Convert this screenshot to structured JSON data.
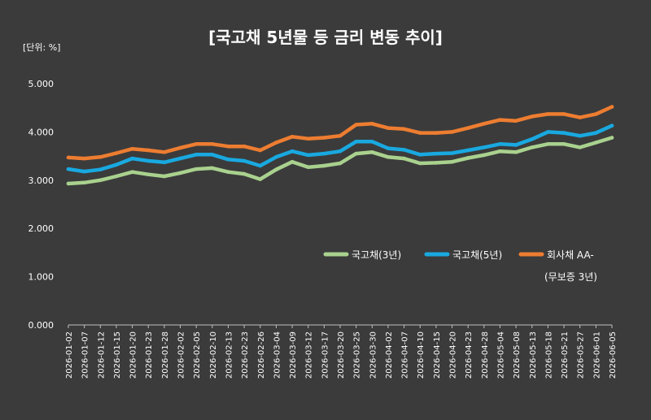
{
  "chart_data": {
    "type": "line",
    "title": "[국고채 5년물 등 금리 변동 추이]",
    "unit_label": "[단위: %]",
    "ylim": [
      0,
      5
    ],
    "y_ticks": [
      "0.000",
      "1.000",
      "2.000",
      "3.000",
      "4.000",
      "5.000"
    ],
    "x_ticks": [
      "2026-01-02",
      "2026-01-07",
      "2026-01-12",
      "2026-01-15",
      "2026-01-20",
      "2026-01-23",
      "2026-01-28",
      "2026-02-02",
      "2026-02-05",
      "2026-02-10",
      "2026-02-13",
      "2026-02-23",
      "2026-02-26",
      "2026-03-04",
      "2026-03-09",
      "2026-03-12",
      "2026-03-17",
      "2026-03-20",
      "2026-03-25",
      "2026-03-30",
      "2026-04-02",
      "2026-04-07",
      "2026-04-10",
      "2026-04-15",
      "2026-04-20",
      "2026-04-23",
      "2026-04-28",
      "2026-05-04",
      "2026-05-08",
      "2026-05-13",
      "2026-05-18",
      "2026-05-21",
      "2026-05-27",
      "2026-06-01",
      "2026-06-05"
    ],
    "grid": false,
    "legend_position": "bottom-right",
    "series": [
      {
        "name": "국고채(3년)",
        "color": "#a9d18e",
        "values": [
          2.93,
          2.95,
          3.0,
          3.08,
          3.17,
          3.12,
          3.08,
          3.15,
          3.23,
          3.25,
          3.17,
          3.13,
          3.02,
          3.22,
          3.38,
          3.27,
          3.3,
          3.35,
          3.55,
          3.58,
          3.48,
          3.45,
          3.35,
          3.36,
          3.38,
          3.46,
          3.52,
          3.6,
          3.58,
          3.68,
          3.75,
          3.75,
          3.68,
          3.78,
          3.88
        ]
      },
      {
        "name": "국고채(5년)",
        "color": "#19a9e0",
        "values": [
          3.23,
          3.18,
          3.22,
          3.32,
          3.45,
          3.4,
          3.37,
          3.45,
          3.53,
          3.53,
          3.43,
          3.4,
          3.3,
          3.48,
          3.6,
          3.52,
          3.55,
          3.6,
          3.8,
          3.8,
          3.66,
          3.63,
          3.53,
          3.55,
          3.56,
          3.62,
          3.68,
          3.75,
          3.73,
          3.85,
          4.0,
          3.98,
          3.92,
          3.98,
          4.13
        ]
      },
      {
        "name": "회사채 AA-(무보증 3년)",
        "legend_lines": [
          "회사채 AA-",
          "(무보증 3년)"
        ],
        "color": "#ed7d31",
        "values": [
          3.47,
          3.45,
          3.48,
          3.56,
          3.65,
          3.62,
          3.58,
          3.67,
          3.75,
          3.75,
          3.7,
          3.7,
          3.62,
          3.78,
          3.9,
          3.86,
          3.88,
          3.92,
          4.15,
          4.17,
          4.08,
          4.06,
          3.98,
          3.98,
          4.0,
          4.08,
          4.17,
          4.25,
          4.23,
          4.32,
          4.37,
          4.37,
          4.3,
          4.37,
          4.52
        ]
      }
    ]
  }
}
